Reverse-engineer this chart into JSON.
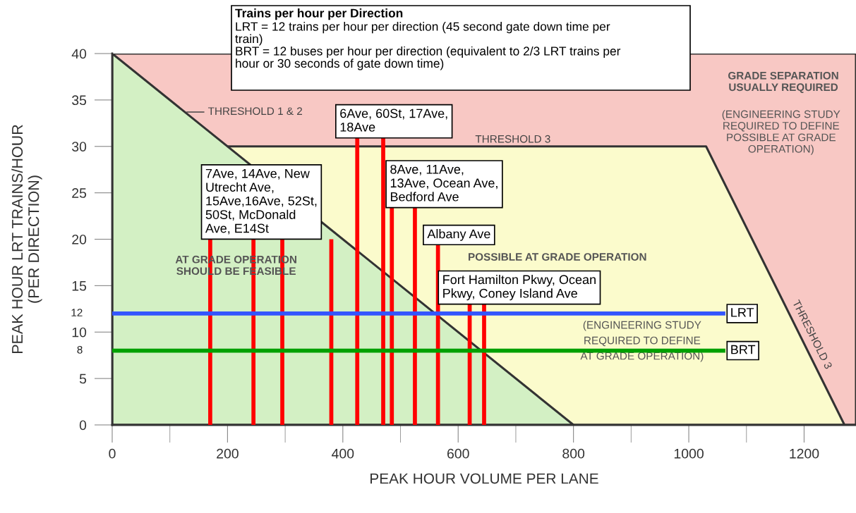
{
  "chart_data": {
    "type": "area",
    "xlabel": "PEAK HOUR VOLUME PER LANE",
    "ylabel": "PEAK HOUR LRT TRAINS/HOUR\n(PER DIRECTION)",
    "xlim": [
      0,
      1290
    ],
    "ylim": [
      0,
      40
    ],
    "xticks": [
      0,
      200,
      400,
      600,
      800,
      1000,
      1200
    ],
    "yticks": [
      0,
      5,
      10,
      15,
      20,
      25,
      30,
      35,
      40
    ],
    "grid": false,
    "legend": false,
    "series": [
      {
        "color": "#f8c8c4",
        "x": [
          0,
          1290
        ],
        "values": [
          40,
          40
        ]
      },
      {
        "color": "#fbfbcc",
        "x": [
          0,
          200,
          1030,
          1270
        ],
        "values": [
          30,
          30,
          30,
          0
        ]
      },
      {
        "color": "#d3f0c4",
        "x": [
          0,
          800
        ],
        "values": [
          40,
          0
        ]
      },
      {
        "type": "bar",
        "color": "#ff0000",
        "x": [
          170,
          245,
          295,
          380,
          425,
          470,
          485,
          525,
          565,
          620,
          645
        ],
        "values": [
          20.0,
          20.0,
          20.0,
          20.0,
          30.9,
          30.9,
          23.4,
          23.4,
          19.4,
          13.0,
          13.0
        ]
      },
      {
        "type": "line",
        "name": "LRT",
        "color": "#3355ff",
        "x": [
          0,
          1060
        ],
        "values": [
          12,
          12
        ]
      },
      {
        "type": "line",
        "name": "BRT",
        "color": "#00a000",
        "x": [
          0,
          1060
        ],
        "values": [
          8,
          8
        ]
      }
    ],
    "annotations": [
      {
        "text": "7Ave, 14Ave, New\nUtrecht Ave,\n15Ave,16Ave, 52St,\n50St, McDonald\nAve, E14St",
        "x": 170,
        "y": 20.0
      },
      {
        "text": "6Ave, 60St, 17Ave,\n18Ave",
        "x": 425,
        "y": 30.9
      },
      {
        "text": "8Ave, 11Ave,\n13Ave, Ocean Ave,\nBedford Ave",
        "x": 485,
        "y": 23.4
      },
      {
        "text": "Albany Ave",
        "x": 565,
        "y": 19.4
      },
      {
        "text": "Fort Hamilton Pkwy, Ocean\nPkwy, Coney Island Ave",
        "x": 620,
        "y": 13.0
      },
      {
        "text": "THRESHOLD 1 & 2",
        "x": 126,
        "y": 33.7
      },
      {
        "text": "12",
        "x": 0,
        "y": 12
      },
      {
        "text": "8",
        "x": 0,
        "y": 8
      },
      "Trains per hour per Direction",
      "LRT = 12 trains per hour per direction (45 second gate down time per\ntrain)\nBRT = 12 buses per hour per direction (equivalent to 2/3 LRT trains per\nhour or 30 seconds of gate down time)",
      "THRESHOLD 3",
      "THRESHOLD 3",
      "GRADE SEPARATION\nUSUALLY REQUIRED",
      "(ENGINEERING STUDY\nREQUIRED TO DEFINE\nPOSSIBLE AT GRADE\nOPERATION)",
      "AT GRADE OPERATION\nSHOULD BE FEASIBLE",
      "POSSIBLE AT GRADE OPERATION",
      "(ENGINEERING STUDY\nREQUIRED TO DEFINE\nAT GRADE OPERATION)"
    ]
  }
}
